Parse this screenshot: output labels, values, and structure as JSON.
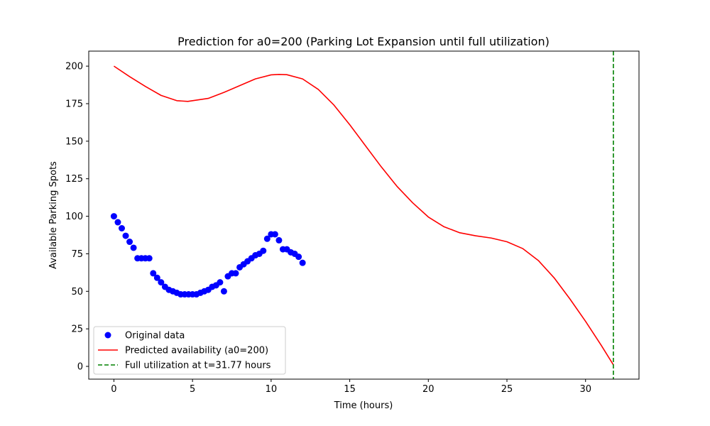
{
  "chart_data": {
    "type": "scatter",
    "title": "Prediction for a0=200 (Parking Lot Expansion until full utilization)",
    "xlabel": "Time (hours)",
    "ylabel": "Available Parking Spots",
    "xlim": [
      -1.6,
      33.4
    ],
    "ylim": [
      -8.5,
      210
    ],
    "xticks": [
      0,
      5,
      10,
      15,
      20,
      25,
      30
    ],
    "yticks": [
      0,
      25,
      50,
      75,
      100,
      125,
      150,
      175,
      200
    ],
    "grid": false,
    "legend_position": "lower-left",
    "series": [
      {
        "name": "Original data",
        "kind": "scatter",
        "color": "#0000ff",
        "points": [
          [
            0.0,
            100
          ],
          [
            0.25,
            96
          ],
          [
            0.5,
            92
          ],
          [
            0.75,
            87
          ],
          [
            1.0,
            83
          ],
          [
            1.25,
            79
          ],
          [
            1.5,
            72
          ],
          [
            1.75,
            72
          ],
          [
            2.0,
            72
          ],
          [
            2.25,
            72
          ],
          [
            2.5,
            62
          ],
          [
            2.75,
            59
          ],
          [
            3.0,
            56
          ],
          [
            3.25,
            53
          ],
          [
            3.5,
            51
          ],
          [
            3.75,
            50
          ],
          [
            4.0,
            49
          ],
          [
            4.25,
            48
          ],
          [
            4.5,
            48
          ],
          [
            4.75,
            48
          ],
          [
            5.0,
            48
          ],
          [
            5.25,
            48
          ],
          [
            5.5,
            49
          ],
          [
            5.75,
            50
          ],
          [
            6.0,
            51
          ],
          [
            6.25,
            53
          ],
          [
            6.5,
            54
          ],
          [
            6.75,
            56
          ],
          [
            7.0,
            50
          ],
          [
            7.25,
            60
          ],
          [
            7.5,
            62
          ],
          [
            7.75,
            62
          ],
          [
            8.0,
            66
          ],
          [
            8.25,
            68
          ],
          [
            8.5,
            70
          ],
          [
            8.75,
            72
          ],
          [
            9.0,
            74
          ],
          [
            9.25,
            75
          ],
          [
            9.5,
            77
          ],
          [
            9.75,
            85
          ],
          [
            10.0,
            88
          ],
          [
            10.25,
            88
          ],
          [
            10.5,
            84
          ],
          [
            10.75,
            78
          ],
          [
            11.0,
            78
          ],
          [
            11.25,
            76
          ],
          [
            11.5,
            75
          ],
          [
            11.75,
            73
          ],
          [
            12.0,
            69
          ]
        ]
      },
      {
        "name": "Predicted availability (a0=200)",
        "kind": "line",
        "color": "#ff0000",
        "points": [
          [
            0,
            200
          ],
          [
            1,
            193
          ],
          [
            2,
            186.5
          ],
          [
            3,
            180.5
          ],
          [
            4,
            177
          ],
          [
            4.7,
            176.5
          ],
          [
            6,
            178.5
          ],
          [
            7,
            182.5
          ],
          [
            8,
            187
          ],
          [
            9,
            191.5
          ],
          [
            10,
            194.2
          ],
          [
            10.5,
            194.5
          ],
          [
            11,
            194.3
          ],
          [
            12,
            191.5
          ],
          [
            13,
            184.5
          ],
          [
            14,
            174
          ],
          [
            15,
            161
          ],
          [
            16,
            147
          ],
          [
            17,
            133
          ],
          [
            18,
            120
          ],
          [
            19,
            109
          ],
          [
            20,
            99.5
          ],
          [
            21,
            93
          ],
          [
            22,
            89
          ],
          [
            23,
            87
          ],
          [
            24,
            85.5
          ],
          [
            25,
            83
          ],
          [
            26,
            78.5
          ],
          [
            27,
            70.5
          ],
          [
            28,
            59
          ],
          [
            29,
            45
          ],
          [
            30,
            30
          ],
          [
            31,
            14
          ],
          [
            31.77,
            1
          ]
        ]
      },
      {
        "name": "Full utilization at t=31.77 hours",
        "kind": "vline",
        "color": "#008000",
        "x": 31.77
      }
    ]
  }
}
